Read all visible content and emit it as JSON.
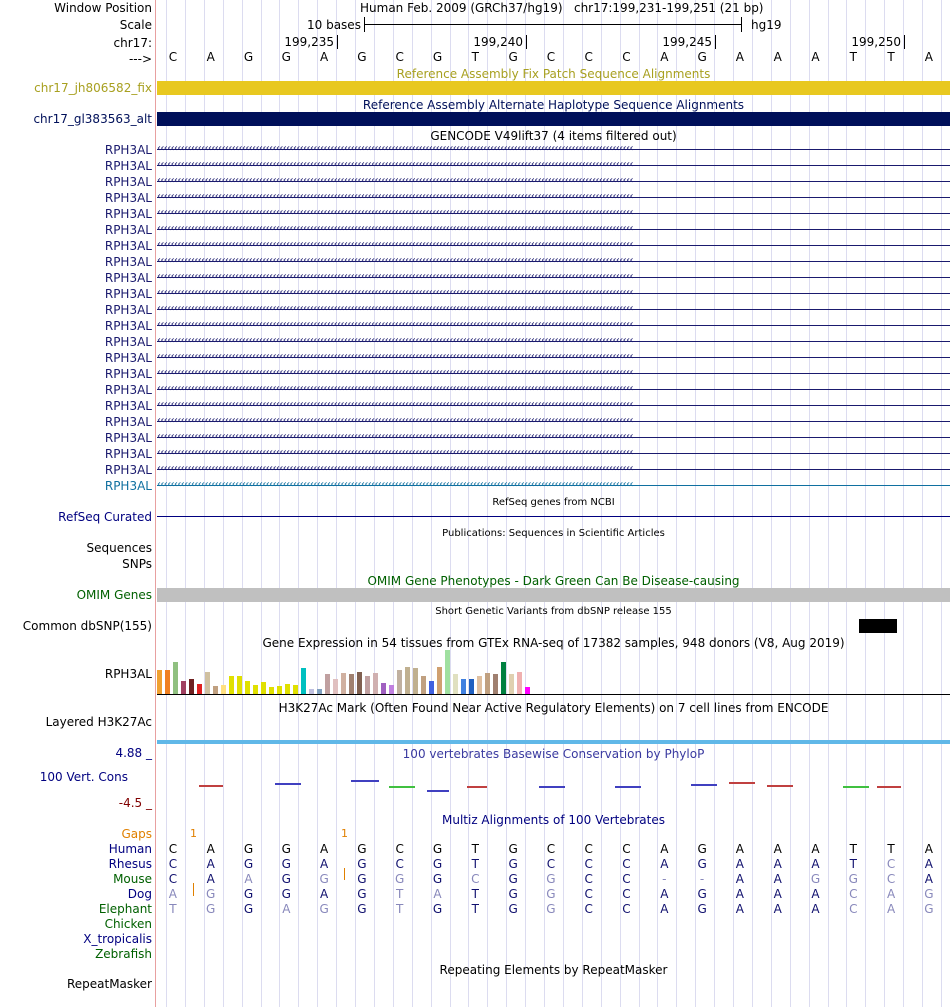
{
  "colors": {
    "navy": "#000080",
    "olive": "#a8a020",
    "darkgreen": "#006000",
    "gold": "#e8c820",
    "deepnavy": "#00105a",
    "gray": "#c0c0c0",
    "orange": "#e08000",
    "rownavy": "#2a2a8a",
    "black": "#000"
  },
  "header": {
    "window_position_label": "Window Position",
    "scale_label": "Scale",
    "chrom_label": "chr17:",
    "arrow_label": "--->",
    "assembly_title": "Human Feb. 2009 (GRCh37/hg19)",
    "position": "chr17:199,231-199,251 (21 bp)",
    "scale_text": "10 bases",
    "db": "hg19",
    "ticks": [
      "199,235",
      "199,240",
      "199,245",
      "199,250"
    ]
  },
  "sequence": [
    "C",
    "A",
    "G",
    "G",
    "A",
    "G",
    "C",
    "G",
    "T",
    "G",
    "C",
    "C",
    "C",
    "A",
    "G",
    "A",
    "A",
    "A",
    "T",
    "T",
    "A"
  ],
  "tracks": {
    "fix_patch": {
      "title": "Reference Assembly Fix Patch Sequence Alignments",
      "label": "chr17_jh806582_fix"
    },
    "alt_haplo": {
      "title": "Reference Assembly Alternate Haplotype Sequence Alignments",
      "label": "chr17_gl383563_alt"
    },
    "gencode": {
      "title": "GENCODE V49lift37 (4 items filtered out)",
      "items": [
        "RPH3AL",
        "RPH3AL",
        "RPH3AL",
        "RPH3AL",
        "RPH3AL",
        "RPH3AL",
        "RPH3AL",
        "RPH3AL",
        "RPH3AL",
        "RPH3AL",
        "RPH3AL",
        "RPH3AL",
        "RPH3AL",
        "RPH3AL",
        "RPH3AL",
        "RPH3AL",
        "RPH3AL",
        "RPH3AL",
        "RPH3AL",
        "RPH3AL",
        "RPH3AL",
        "RPH3AL"
      ]
    },
    "refseq": {
      "title": "RefSeq genes from NCBI",
      "label": "RefSeq Curated"
    },
    "publications": {
      "title": "Publications: Sequences in Scientific Articles",
      "label1": "Sequences",
      "label2": "SNPs"
    },
    "omim": {
      "title": "OMIM Gene Phenotypes - Dark Green Can Be Disease-causing",
      "label": "OMIM Genes"
    },
    "dbsnp": {
      "title": "Short Genetic Variants from dbSNP release 155",
      "label": "Common dbSNP(155)"
    },
    "gtex": {
      "title": "Gene Expression in 54 tissues from GTEx RNA-seq of 17382 samples, 948 donors (V8, Aug 2019)",
      "label": "RPH3AL"
    },
    "h3k27ac": {
      "title": "H3K27Ac Mark (Often Found Near Active Regulatory Elements) on 7 cell lines from ENCODE",
      "label": "Layered H3K27Ac"
    },
    "phylop": {
      "title": "100 vertebrates Basewise Conservation by PhyloP",
      "label": "100 Vert. Cons",
      "max": "4.88 _",
      "min": "-4.5 _"
    },
    "multiz": {
      "title": "Multiz Alignments of 100 Vertebrates",
      "gaps_label": "Gaps",
      "gap_numbers": [
        "1",
        "1"
      ],
      "species": [
        "Human",
        "Rhesus",
        "Mouse",
        "Dog",
        "Elephant",
        "Chicken",
        "X_tropicalis",
        "Zebrafish"
      ],
      "rows": {
        "Human": [
          "C",
          "A",
          "G",
          "G",
          "A",
          "G",
          "C",
          "G",
          "T",
          "G",
          "C",
          "C",
          "C",
          "A",
          "G",
          "A",
          "A",
          "A",
          "T",
          "T",
          "A"
        ],
        "Rhesus": [
          "C",
          "A",
          "G",
          "G",
          "A",
          "G",
          "C",
          "G",
          "T",
          "G",
          "C",
          "C",
          "C",
          "A",
          "G",
          "A",
          "A",
          "A",
          "T",
          "C",
          "A"
        ],
        "Mouse": [
          "C",
          "A",
          "A",
          "G",
          "G",
          "G",
          "G",
          "G",
          "C",
          "G",
          "G",
          "C",
          "C",
          "-",
          "-",
          "A",
          "A",
          "G",
          "G",
          "C",
          "A"
        ],
        "Dog": [
          "A",
          "G",
          "G",
          "G",
          "A",
          "G",
          "T",
          "A",
          "T",
          "G",
          "G",
          "C",
          "C",
          "A",
          "G",
          "A",
          "A",
          "A",
          "C",
          "A",
          "G"
        ],
        "Elephant": [
          "T",
          "G",
          "G",
          "A",
          "G",
          "G",
          "T",
          "G",
          "T",
          "G",
          "G",
          "C",
          "C",
          "A",
          "G",
          "A",
          "A",
          "A",
          "C",
          "A",
          "G"
        ]
      }
    },
    "repeatmasker": {
      "title": "Repeating Elements by RepeatMasker",
      "label": "RepeatMasker"
    }
  },
  "gtex_bars": [
    {
      "v": 0.55,
      "c": "#f0a030"
    },
    {
      "v": 0.55,
      "c": "#f08020"
    },
    {
      "v": 0.72,
      "c": "#90c080"
    },
    {
      "v": 0.3,
      "c": "#a04060"
    },
    {
      "v": 0.35,
      "c": "#702020"
    },
    {
      "v": 0.22,
      "c": "#e02020"
    },
    {
      "v": 0.5,
      "c": "#d0c0a0"
    },
    {
      "v": 0.18,
      "c": "#c0a080"
    },
    {
      "v": 0.2,
      "c": "#ffe080"
    },
    {
      "v": 0.42,
      "c": "#e0e000"
    },
    {
      "v": 0.42,
      "c": "#e0e000"
    },
    {
      "v": 0.3,
      "c": "#e0e000"
    },
    {
      "v": 0.2,
      "c": "#e0e000"
    },
    {
      "v": 0.28,
      "c": "#e0e000"
    },
    {
      "v": 0.15,
      "c": "#e0e000"
    },
    {
      "v": 0.18,
      "c": "#e0e000"
    },
    {
      "v": 0.22,
      "c": "#e0e000"
    },
    {
      "v": 0.2,
      "c": "#e0e000"
    },
    {
      "v": 0.58,
      "c": "#00c0c0"
    },
    {
      "v": 0.12,
      "c": "#c0c0e0"
    },
    {
      "v": 0.12,
      "c": "#80a0c0"
    },
    {
      "v": 0.45,
      "c": "#c0a0a0"
    },
    {
      "v": 0.35,
      "c": "#e0c0c0"
    },
    {
      "v": 0.48,
      "c": "#d0b0a0"
    },
    {
      "v": 0.45,
      "c": "#a08070"
    },
    {
      "v": 0.5,
      "c": "#806050"
    },
    {
      "v": 0.42,
      "c": "#c0a0a0"
    },
    {
      "v": 0.48,
      "c": "#d0b0b0"
    },
    {
      "v": 0.25,
      "c": "#a060c0"
    },
    {
      "v": 0.2,
      "c": "#c080e0"
    },
    {
      "v": 0.55,
      "c": "#c0b0a0"
    },
    {
      "v": 0.62,
      "c": "#c0b090"
    },
    {
      "v": 0.6,
      "c": "#c0b090"
    },
    {
      "v": 0.42,
      "c": "#c0a080"
    },
    {
      "v": 0.3,
      "c": "#4060e0"
    },
    {
      "v": 0.62,
      "c": "#d0a070"
    },
    {
      "v": 1.0,
      "c": "#a0e0a0"
    },
    {
      "v": 0.45,
      "c": "#e0e0c0"
    },
    {
      "v": 0.35,
      "c": "#4080e0"
    },
    {
      "v": 0.35,
      "c": "#2060c0"
    },
    {
      "v": 0.4,
      "c": "#e0c0a0"
    },
    {
      "v": 0.48,
      "c": "#c0a080"
    },
    {
      "v": 0.45,
      "c": "#a08070"
    },
    {
      "v": 0.72,
      "c": "#008040"
    },
    {
      "v": 0.45,
      "c": "#e0d0b0"
    },
    {
      "v": 0.5,
      "c": "#f0b0b0"
    },
    {
      "v": 0.15,
      "c": "#ff00ff"
    }
  ],
  "phylop_marks": [
    {
      "x": 42,
      "y": 785,
      "w": 24,
      "c": "#c04040"
    },
    {
      "x": 118,
      "y": 783,
      "w": 26,
      "c": "#4040c0"
    },
    {
      "x": 194,
      "y": 780,
      "w": 28,
      "c": "#4040c0"
    },
    {
      "x": 232,
      "y": 786,
      "w": 26,
      "c": "#40c040"
    },
    {
      "x": 270,
      "y": 790,
      "w": 22,
      "c": "#4040c0"
    },
    {
      "x": 310,
      "y": 786,
      "w": 20,
      "c": "#c04040"
    },
    {
      "x": 382,
      "y": 786,
      "w": 26,
      "c": "#4040c0"
    },
    {
      "x": 458,
      "y": 786,
      "w": 26,
      "c": "#4040c0"
    },
    {
      "x": 534,
      "y": 784,
      "w": 26,
      "c": "#4040c0"
    },
    {
      "x": 572,
      "y": 782,
      "w": 26,
      "c": "#c04040"
    },
    {
      "x": 610,
      "y": 785,
      "w": 26,
      "c": "#c04040"
    },
    {
      "x": 686,
      "y": 786,
      "w": 26,
      "c": "#40c040"
    },
    {
      "x": 720,
      "y": 786,
      "w": 24,
      "c": "#c04040"
    }
  ],
  "dbsnp_block": {
    "pos": 18.5
  }
}
